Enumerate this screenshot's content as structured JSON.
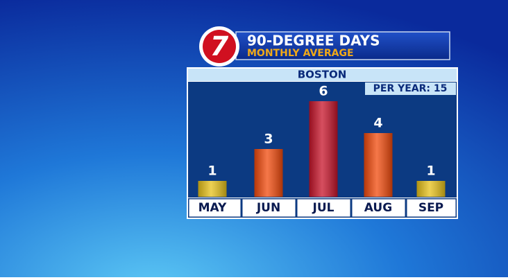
{
  "chart_data": {
    "type": "bar",
    "logo": "7",
    "title": "90-DEGREE DAYS",
    "subtitle": "MONTHLY AVERAGE",
    "location": "BOSTON",
    "annotation": "PER YEAR: 15",
    "categories": [
      "MAY",
      "JUN",
      "JUL",
      "AUG",
      "SEP"
    ],
    "values": [
      1,
      3,
      6,
      4,
      1
    ],
    "colors": [
      "#e8c21a",
      "#f24a0c",
      "#c8142a",
      "#f24a0c",
      "#e8c21a"
    ]
  }
}
